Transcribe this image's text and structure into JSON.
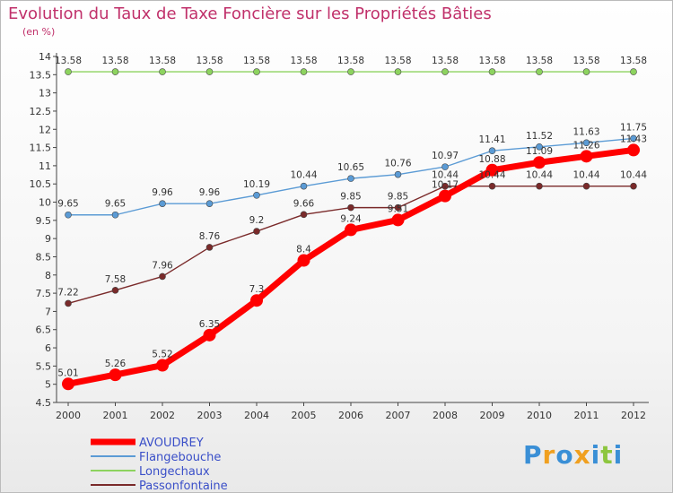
{
  "chart_data": {
    "type": "line",
    "title": "Evolution du Taux de Taxe Foncière sur les Propriétés Bâties",
    "ylabel": "(en %)",
    "xlabel": "",
    "x": [
      "2000",
      "2001",
      "2002",
      "2003",
      "2004",
      "2005",
      "2006",
      "2007",
      "2008",
      "2009",
      "2010",
      "2011",
      "2012"
    ],
    "ylim": [
      4.5,
      14
    ],
    "yticks": [
      "4.5",
      "5",
      "5.5",
      "6",
      "6.5",
      "7",
      "7.5",
      "8",
      "8.5",
      "9",
      "9.5",
      "10",
      "10.5",
      "11",
      "11.5",
      "12",
      "12.5",
      "13",
      "13.5",
      "14"
    ],
    "grid": false,
    "legend_position": "bottom-left",
    "series": [
      {
        "name": "AVOUDREY",
        "color": "#ff0000",
        "values": [
          5.01,
          5.26,
          5.52,
          6.35,
          7.3,
          8.4,
          9.24,
          9.51,
          10.17,
          10.88,
          11.09,
          11.26,
          11.43
        ],
        "labels": [
          "5.01",
          "5.26",
          "5.52",
          "6.35",
          "7.3",
          "8.4",
          "9.24",
          "9.51",
          "10.17",
          "10.88",
          "11.09",
          "11.26",
          "11.43"
        ]
      },
      {
        "name": "Flangebouche",
        "color": "#5b9bd5",
        "values": [
          9.65,
          9.65,
          9.96,
          9.96,
          10.19,
          10.44,
          10.65,
          10.76,
          10.97,
          11.41,
          11.52,
          11.63,
          11.75
        ],
        "labels": [
          "9.65",
          "9.65",
          "9.96",
          "9.96",
          "10.19",
          "10.44",
          "10.65",
          "10.76",
          "10.97",
          "11.41",
          "11.52",
          "11.63",
          "11.75"
        ]
      },
      {
        "name": "Longechaux",
        "color": "#8dd35f",
        "values": [
          13.58,
          13.58,
          13.58,
          13.58,
          13.58,
          13.58,
          13.58,
          13.58,
          13.58,
          13.58,
          13.58,
          13.58,
          13.58
        ],
        "labels": [
          "13.58",
          "13.58",
          "13.58",
          "13.58",
          "13.58",
          "13.58",
          "13.58",
          "13.58",
          "13.58",
          "13.58",
          "13.58",
          "13.58",
          "13.58"
        ]
      },
      {
        "name": "Passonfontaine",
        "color": "#7a2a2a",
        "values": [
          7.22,
          7.58,
          7.96,
          8.76,
          9.2,
          9.66,
          9.85,
          9.85,
          10.44,
          10.44,
          10.44,
          10.44,
          10.44
        ],
        "labels": [
          "7.22",
          "7.58",
          "7.96",
          "8.76",
          "9.2",
          "9.66",
          "9.85",
          "9.85",
          "10.44",
          "10.44",
          "10.44",
          "10.44",
          "10.44"
        ]
      }
    ]
  },
  "logo": {
    "letters": [
      "P",
      "r",
      "o",
      "x",
      "i",
      "t",
      "i"
    ],
    "colors": [
      "#3a8fd6",
      "#f0a020",
      "#3a8fd6",
      "#f0a020",
      "#3a8fd6",
      "#8dc63f",
      "#3a8fd6"
    ]
  }
}
